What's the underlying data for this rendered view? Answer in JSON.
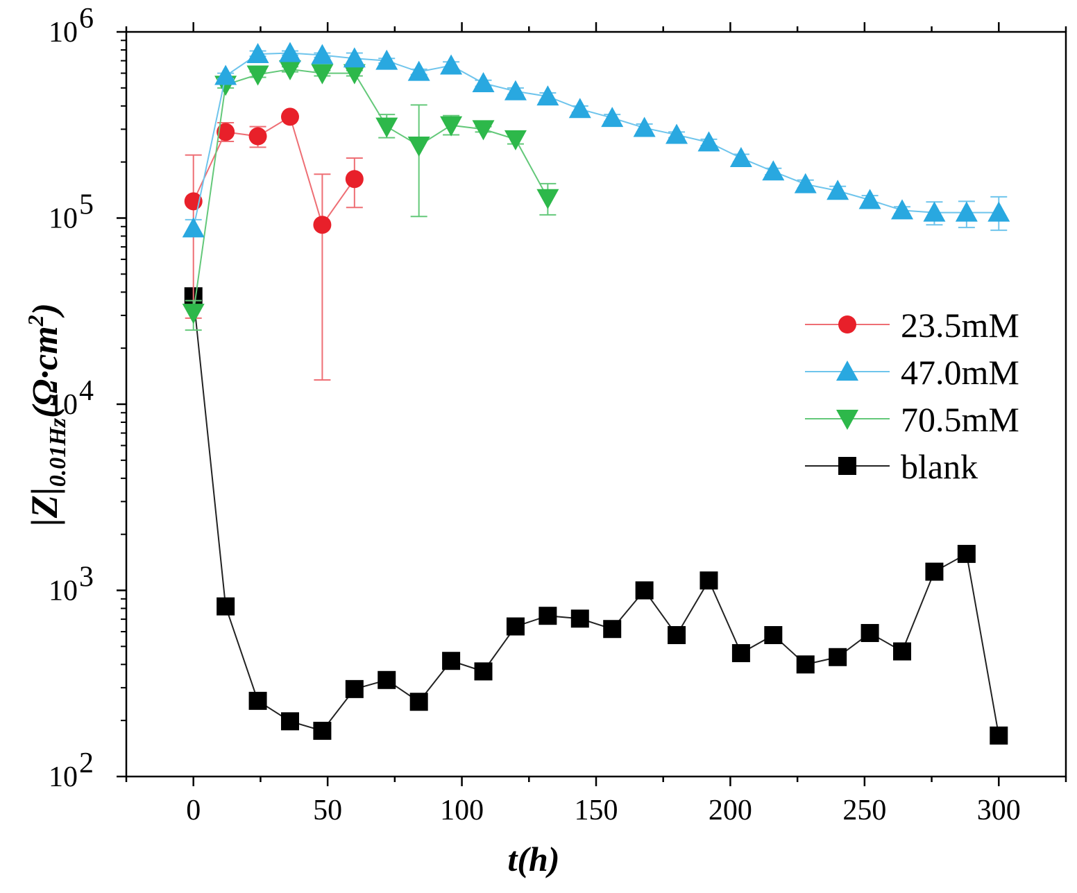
{
  "chart_data": {
    "type": "line",
    "ylog": true,
    "xlabel": "t(h)",
    "ylabel": {
      "bar": "|Z|",
      "sub": "0.01Hz",
      "units": "(Ω·cm",
      "sup": "2",
      "close": ")"
    },
    "xlim": [
      -25,
      325
    ],
    "ylim": [
      100,
      1000000
    ],
    "xticks": [
      0,
      50,
      100,
      150,
      200,
      250,
      300
    ],
    "yticks": [
      {
        "value": 100,
        "base": "10",
        "exp": "2"
      },
      {
        "value": 1000,
        "base": "10",
        "exp": "3"
      },
      {
        "value": 10000,
        "base": "10",
        "exp": "4"
      },
      {
        "value": 100000,
        "base": "10",
        "exp": "5"
      },
      {
        "value": 1000000,
        "base": "10",
        "exp": "6"
      }
    ],
    "legend_position": "right",
    "series": [
      {
        "name": "23.5mM",
        "color": "#e8202a",
        "line_color": "#ee6e74",
        "marker": "circle",
        "x": [
          0,
          12,
          24,
          36,
          48,
          60
        ],
        "y": [
          123000,
          290000,
          275000,
          350000,
          92000,
          162000
        ],
        "err_upper": [
          218000,
          325000,
          310000,
          350000,
          172000,
          210000
        ],
        "err_lower": [
          29000,
          258000,
          240000,
          350000,
          13500,
          114000
        ]
      },
      {
        "name": "47.0mM",
        "color": "#29a8e0",
        "line_color": "#6ec4ec",
        "marker": "triangle-up",
        "x": [
          0,
          12,
          24,
          36,
          48,
          60,
          72,
          84,
          96,
          108,
          120,
          132,
          144,
          156,
          168,
          180,
          192,
          204,
          216,
          228,
          240,
          252,
          264,
          276,
          288,
          300
        ],
        "y": [
          88000,
          580000,
          760000,
          770000,
          750000,
          720000,
          700000,
          610000,
          660000,
          530000,
          480000,
          450000,
          385000,
          345000,
          305000,
          280000,
          255000,
          210000,
          178000,
          152000,
          140000,
          125000,
          110000,
          107000,
          107000,
          107000
        ],
        "err_upper": [
          98000,
          600000,
          790000,
          790000,
          770000,
          770000,
          720000,
          630000,
          690000,
          550000,
          500000,
          470000,
          400000,
          360000,
          320000,
          290000,
          265000,
          220000,
          185000,
          160000,
          148000,
          132000,
          115000,
          122000,
          123000,
          130000
        ],
        "err_lower": [
          80000,
          560000,
          740000,
          750000,
          730000,
          680000,
          680000,
          590000,
          630000,
          510000,
          460000,
          430000,
          370000,
          330000,
          290000,
          270000,
          245000,
          200000,
          171000,
          145000,
          132000,
          118000,
          105000,
          92000,
          89000,
          86000
        ]
      },
      {
        "name": "70.5mM",
        "color": "#2db84a",
        "line_color": "#63c879",
        "marker": "triangle-down",
        "x": [
          0,
          12,
          24,
          36,
          48,
          60,
          72,
          84,
          96,
          108,
          120,
          132
        ],
        "y": [
          31000,
          520000,
          590000,
          630000,
          600000,
          600000,
          310000,
          245000,
          315000,
          300000,
          265000,
          128000
        ],
        "err_upper": [
          36000,
          540000,
          610000,
          650000,
          620000,
          620000,
          360000,
          405000,
          355000,
          310000,
          280000,
          153000
        ],
        "err_lower": [
          25000,
          500000,
          570000,
          610000,
          580000,
          580000,
          270000,
          102000,
          280000,
          290000,
          250000,
          104000
        ]
      },
      {
        "name": "blank",
        "color": "#000000",
        "line_color": "#222222",
        "marker": "square",
        "x": [
          0,
          12,
          24,
          36,
          48,
          60,
          72,
          84,
          96,
          108,
          120,
          132,
          144,
          156,
          168,
          180,
          192,
          204,
          216,
          228,
          240,
          252,
          264,
          276,
          288,
          300
        ],
        "y": [
          38000,
          820,
          255,
          198,
          176,
          295,
          330,
          252,
          418,
          367,
          640,
          730,
          705,
          620,
          1000,
          575,
          1130,
          460,
          575,
          400,
          438,
          590,
          470,
          1260,
          1570,
          166
        ]
      }
    ]
  }
}
